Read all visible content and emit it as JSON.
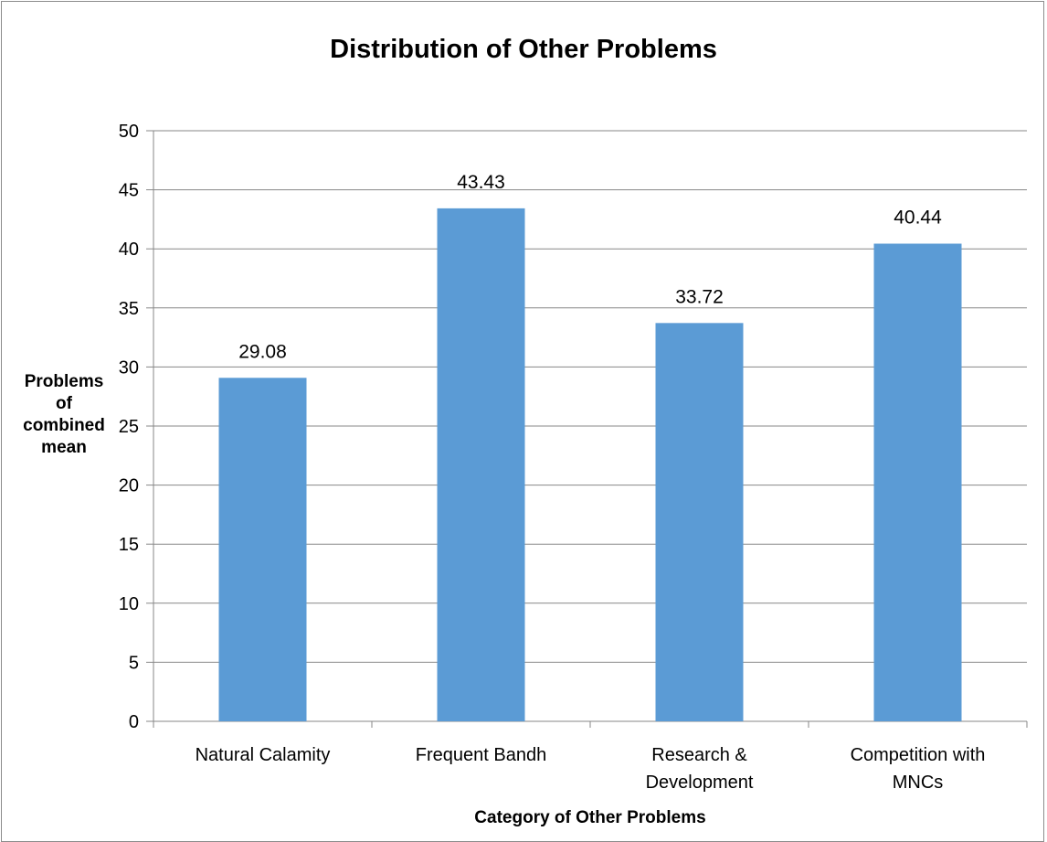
{
  "chart_data": {
    "type": "bar",
    "title": "Distribution of Other Problems",
    "xlabel": "Category of Other Problems",
    "ylabel": "Problems of combined mean",
    "ylabel_lines": [
      "Problems",
      "of",
      "combined",
      "mean"
    ],
    "categories": [
      [
        "Natural Calamity"
      ],
      [
        "Frequent Bandh"
      ],
      [
        "Research &",
        "Development"
      ],
      [
        "Competition with",
        "MNCs"
      ]
    ],
    "values": [
      29.08,
      43.43,
      33.72,
      40.44
    ],
    "data_labels": [
      "29.08",
      "43.43",
      "33.72",
      "40.44"
    ],
    "ylim": [
      0,
      50
    ],
    "yticks": [
      0,
      5,
      10,
      15,
      20,
      25,
      30,
      35,
      40,
      45,
      50
    ],
    "grid": true,
    "legend": "none",
    "bar_color": "#5b9bd5",
    "grid_color": "#878787",
    "axis_color": "#878787"
  }
}
